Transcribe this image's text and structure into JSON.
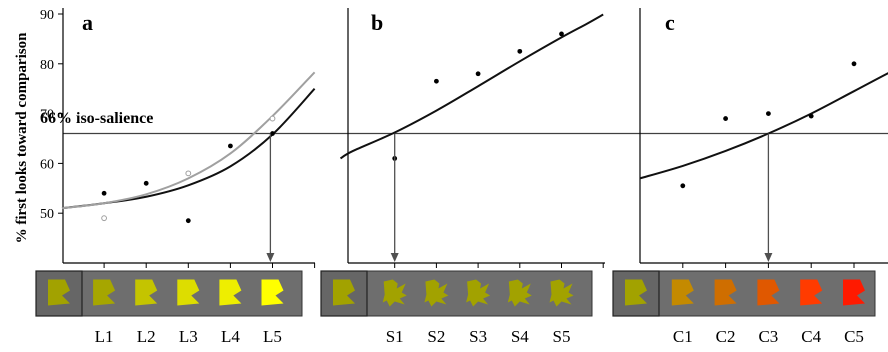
{
  "figure": {
    "ylabel": "% first looks toward comparison",
    "iso_label": "66% iso-salience",
    "iso_value": 66,
    "yticks": [
      50,
      60,
      70,
      80,
      90
    ],
    "ylim": [
      40,
      90
    ]
  },
  "chart_data": [
    {
      "type": "scatter",
      "panel_label": "a",
      "categories": [
        "L1",
        "L2",
        "L3",
        "L4",
        "L5"
      ],
      "series": [
        {
          "values": [
            54,
            56,
            48.5,
            63.5,
            66
          ],
          "marker": "filled",
          "color": "#000000"
        },
        {
          "values": [
            49,
            null,
            58,
            null,
            69
          ],
          "marker": "open",
          "color": "#a0a0a0"
        }
      ],
      "fits": [
        {
          "color": "#111111",
          "points": [
            [
              0,
              51
            ],
            [
              1,
              52
            ],
            [
              2,
              53.3
            ],
            [
              3,
              55.6
            ],
            [
              4,
              59.4
            ],
            [
              5,
              65.8
            ],
            [
              6,
              75
            ]
          ]
        },
        {
          "color": "#a0a0a0",
          "points": [
            [
              0,
              51
            ],
            [
              1,
              52
            ],
            [
              2,
              53.8
            ],
            [
              3,
              57
            ],
            [
              4,
              62
            ],
            [
              5,
              69.5
            ],
            [
              6,
              78.3
            ]
          ]
        }
      ],
      "crossing_x": 4.95,
      "ylim": [
        40,
        90
      ],
      "swatches": {
        "reference": "#a2a200",
        "colors": [
          "#a6a600",
          "#c4c400",
          "#dddd00",
          "#eeee00",
          "#ffff00"
        ],
        "shape": "pentagon"
      }
    },
    {
      "type": "scatter",
      "panel_label": "b",
      "categories": [
        "S1",
        "S2",
        "S3",
        "S4",
        "S5"
      ],
      "series": [
        {
          "values": [
            61,
            76.5,
            78,
            82.5,
            86
          ],
          "marker": "filled",
          "color": "#000000"
        }
      ],
      "fits": [
        {
          "color": "#111111",
          "points": [
            [
              -0.3,
              61
            ],
            [
              0,
              62.5
            ],
            [
              1,
              66.2
            ],
            [
              2,
              70.6
            ],
            [
              3,
              75.5
            ],
            [
              4,
              80.5
            ],
            [
              5,
              85.3
            ],
            [
              5.6,
              88
            ],
            [
              6,
              89.9
            ]
          ]
        }
      ],
      "crossing_x": 1,
      "ylim": [
        40,
        90
      ],
      "swatches": {
        "reference": "#a2a200",
        "colors": [
          "#a2a200",
          "#a2a200",
          "#a2a200",
          "#a2a200",
          "#a2a200"
        ],
        "shape": "star"
      }
    },
    {
      "type": "scatter",
      "panel_label": "c",
      "categories": [
        "C1",
        "C2",
        "C3",
        "C4",
        "C5"
      ],
      "series": [
        {
          "values": [
            55.5,
            69,
            70,
            69.5,
            80
          ],
          "marker": "filled",
          "color": "#000000"
        }
      ],
      "fits": [
        {
          "color": "#111111",
          "points": [
            [
              0,
              57
            ],
            [
              1,
              59.5
            ],
            [
              2,
              62.5
            ],
            [
              3,
              66
            ],
            [
              4,
              70
            ],
            [
              5,
              74.5
            ],
            [
              6,
              79
            ],
            [
              7,
              83
            ]
          ]
        }
      ],
      "crossing_x": 3,
      "ylim": [
        40,
        90
      ],
      "swatches": {
        "reference": "#a2a200",
        "colors": [
          "#c48a00",
          "#cf6e00",
          "#e05800",
          "#ff3b00",
          "#ff1a00"
        ],
        "shape": "pentagon"
      }
    }
  ]
}
